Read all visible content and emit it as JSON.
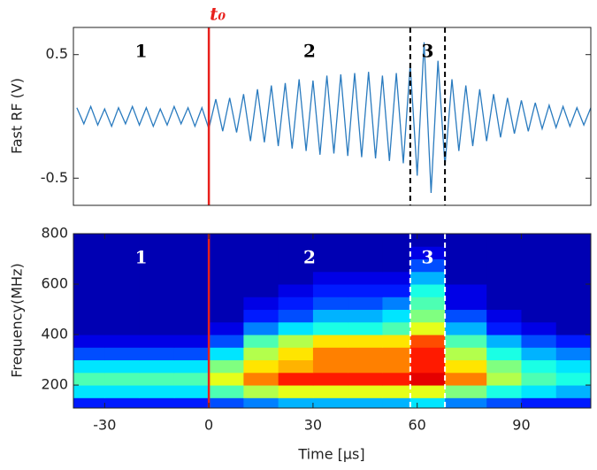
{
  "chart_data": [
    {
      "type": "line",
      "y_label": "Fast RF (V)",
      "xlim": [
        -39,
        110
      ],
      "ylim": [
        -0.72,
        0.72
      ],
      "yticks": [
        -0.5,
        0.5
      ],
      "color": "#2a7bbf",
      "x": [
        -38,
        -36,
        -34,
        -32,
        -30,
        -28,
        -26,
        -24,
        -22,
        -20,
        -18,
        -16,
        -14,
        -12,
        -10,
        -8,
        -6,
        -4,
        -2,
        0,
        2,
        4,
        6,
        8,
        10,
        12,
        14,
        16,
        18,
        20,
        22,
        24,
        26,
        28,
        30,
        32,
        34,
        36,
        38,
        40,
        42,
        44,
        46,
        48,
        50,
        52,
        54,
        56,
        58,
        60,
        62,
        64,
        66,
        68,
        70,
        72,
        74,
        76,
        78,
        80,
        82,
        84,
        86,
        88,
        90,
        92,
        94,
        96,
        98,
        100,
        102,
        104,
        106,
        108,
        110
      ],
      "values": [
        0.07,
        -0.06,
        0.08,
        -0.07,
        0.06,
        -0.08,
        0.07,
        -0.06,
        0.08,
        -0.07,
        0.07,
        -0.08,
        0.06,
        -0.07,
        0.08,
        -0.06,
        0.07,
        -0.08,
        0.07,
        -0.1,
        0.14,
        -0.12,
        0.15,
        -0.13,
        0.18,
        -0.2,
        0.22,
        -0.21,
        0.25,
        -0.24,
        0.27,
        -0.26,
        0.3,
        -0.28,
        0.29,
        -0.31,
        0.33,
        -0.3,
        0.34,
        -0.32,
        0.35,
        -0.33,
        0.36,
        -0.34,
        0.33,
        -0.36,
        0.35,
        -0.38,
        0.42,
        -0.48,
        0.6,
        -0.62,
        0.45,
        -0.4,
        0.3,
        -0.28,
        0.25,
        -0.24,
        0.22,
        -0.2,
        0.18,
        -0.17,
        0.15,
        -0.14,
        0.13,
        -0.12,
        0.11,
        -0.1,
        0.09,
        -0.09,
        0.08,
        -0.08,
        0.07,
        -0.07,
        0.07
      ],
      "vlines": [
        {
          "x": 0,
          "color": "#e8201c",
          "dash": false
        },
        {
          "x": 58,
          "color": "#000000",
          "dash": true
        },
        {
          "x": 68,
          "color": "#000000",
          "dash": true
        }
      ],
      "vline_label": "t₀",
      "region_labels": [
        "1",
        "2",
        "3"
      ],
      "region_label_color": "#000000"
    },
    {
      "type": "heatmap",
      "x_label": "Time [μs]",
      "y_label": "Frequency(MHz)",
      "xlim": [
        -39,
        110
      ],
      "ylim": [
        109,
        800
      ],
      "xticks": [
        -30,
        0,
        30,
        60,
        90
      ],
      "yticks": [
        200,
        400,
        600,
        800
      ],
      "colormap": "jet",
      "xbins": [
        -39,
        -30,
        -20,
        -10,
        0,
        10,
        20,
        30,
        40,
        50,
        58,
        68,
        80,
        90,
        100,
        110
      ],
      "ybins": [
        109,
        150,
        200,
        250,
        300,
        350,
        400,
        450,
        500,
        550,
        600,
        650,
        700,
        750,
        800
      ],
      "values": [
        [
          0.15,
          0.15,
          0.15,
          0.15,
          0.2,
          0.25,
          0.3,
          0.3,
          0.3,
          0.3,
          0.35,
          0.25,
          0.2,
          0.15,
          0.15
        ],
        [
          0.35,
          0.35,
          0.35,
          0.35,
          0.45,
          0.55,
          0.6,
          0.6,
          0.6,
          0.6,
          0.6,
          0.5,
          0.4,
          0.35,
          0.3
        ],
        [
          0.45,
          0.45,
          0.45,
          0.45,
          0.6,
          0.75,
          0.85,
          0.85,
          0.85,
          0.85,
          0.9,
          0.75,
          0.55,
          0.45,
          0.4
        ],
        [
          0.35,
          0.35,
          0.35,
          0.35,
          0.5,
          0.65,
          0.7,
          0.75,
          0.75,
          0.75,
          0.85,
          0.65,
          0.5,
          0.4,
          0.35
        ],
        [
          0.2,
          0.2,
          0.2,
          0.2,
          0.35,
          0.55,
          0.65,
          0.75,
          0.75,
          0.75,
          0.85,
          0.55,
          0.4,
          0.3,
          0.25
        ],
        [
          0.1,
          0.1,
          0.1,
          0.1,
          0.2,
          0.45,
          0.55,
          0.65,
          0.65,
          0.65,
          0.8,
          0.45,
          0.3,
          0.2,
          0.15
        ],
        [
          0.05,
          0.05,
          0.05,
          0.05,
          0.1,
          0.25,
          0.35,
          0.4,
          0.4,
          0.45,
          0.6,
          0.3,
          0.15,
          0.1,
          0.05
        ],
        [
          0.05,
          0.05,
          0.05,
          0.05,
          0.05,
          0.15,
          0.2,
          0.3,
          0.3,
          0.35,
          0.5,
          0.2,
          0.1,
          0.05,
          0.05
        ],
        [
          0.05,
          0.05,
          0.05,
          0.05,
          0.05,
          0.1,
          0.15,
          0.2,
          0.2,
          0.25,
          0.45,
          0.1,
          0.05,
          0.05,
          0.05
        ],
        [
          0.05,
          0.05,
          0.05,
          0.05,
          0.05,
          0.05,
          0.1,
          0.15,
          0.15,
          0.15,
          0.4,
          0.1,
          0.05,
          0.05,
          0.05
        ],
        [
          0.05,
          0.05,
          0.05,
          0.05,
          0.05,
          0.05,
          0.05,
          0.1,
          0.1,
          0.1,
          0.3,
          0.05,
          0.05,
          0.05,
          0.05
        ],
        [
          0.05,
          0.05,
          0.05,
          0.05,
          0.05,
          0.05,
          0.05,
          0.05,
          0.05,
          0.05,
          0.2,
          0.05,
          0.05,
          0.05,
          0.05
        ],
        [
          0.05,
          0.05,
          0.05,
          0.05,
          0.05,
          0.05,
          0.05,
          0.05,
          0.05,
          0.05,
          0.1,
          0.05,
          0.05,
          0.05,
          0.05
        ],
        [
          0.05,
          0.05,
          0.05,
          0.05,
          0.05,
          0.05,
          0.05,
          0.05,
          0.05,
          0.05,
          0.05,
          0.05,
          0.05,
          0.05,
          0.05
        ]
      ],
      "vlines": [
        {
          "x": 0,
          "color": "#e8201c",
          "dash": false
        },
        {
          "x": 58,
          "color": "#ffffff",
          "dash": true
        },
        {
          "x": 68,
          "color": "#ffffff",
          "dash": true
        }
      ],
      "region_labels": [
        "1",
        "2",
        "3"
      ],
      "region_label_color": "#ffffff"
    }
  ]
}
